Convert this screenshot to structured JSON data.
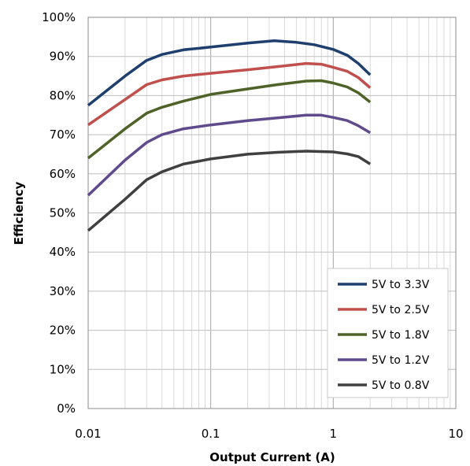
{
  "chart_data": {
    "type": "line",
    "title": "",
    "xlabel": "Output Current (A)",
    "ylabel": "Efficiency",
    "x_scale": "log",
    "xlim": [
      0.01,
      10
    ],
    "ylim": [
      0,
      100
    ],
    "grid": true,
    "legend_position": "bottom-right",
    "x_ticks": [
      {
        "value": 0.01,
        "label": "0.01"
      },
      {
        "value": 0.1,
        "label": "0.1"
      },
      {
        "value": 1,
        "label": "1"
      },
      {
        "value": 10,
        "label": "10"
      }
    ],
    "y_ticks": [
      {
        "value": 0,
        "label": "0%"
      },
      {
        "value": 10,
        "label": "10%"
      },
      {
        "value": 20,
        "label": "20%"
      },
      {
        "value": 30,
        "label": "30%"
      },
      {
        "value": 40,
        "label": "40%"
      },
      {
        "value": 50,
        "label": "50%"
      },
      {
        "value": 60,
        "label": "60%"
      },
      {
        "value": 70,
        "label": "70%"
      },
      {
        "value": 80,
        "label": "80%"
      },
      {
        "value": 90,
        "label": "90%"
      },
      {
        "value": 100,
        "label": "100%"
      }
    ],
    "series": [
      {
        "name": "5V to 3.3V",
        "color": "#1f3f6e",
        "points": [
          [
            0.01,
            77.5
          ],
          [
            0.02,
            85
          ],
          [
            0.03,
            89
          ],
          [
            0.04,
            90.5
          ],
          [
            0.06,
            91.7
          ],
          [
            0.1,
            92.4
          ],
          [
            0.2,
            93.4
          ],
          [
            0.33,
            94
          ],
          [
            0.5,
            93.6
          ],
          [
            0.7,
            93
          ],
          [
            1.0,
            91.8
          ],
          [
            1.3,
            90.3
          ],
          [
            1.6,
            88.2
          ],
          [
            2.0,
            85.3
          ]
        ]
      },
      {
        "name": "5V to 2.5V",
        "color": "#c0504d",
        "points": [
          [
            0.01,
            72.5
          ],
          [
            0.02,
            79
          ],
          [
            0.03,
            82.8
          ],
          [
            0.04,
            84
          ],
          [
            0.06,
            85
          ],
          [
            0.1,
            85.7
          ],
          [
            0.2,
            86.6
          ],
          [
            0.35,
            87.4
          ],
          [
            0.6,
            88.2
          ],
          [
            0.8,
            88
          ],
          [
            1.0,
            87.2
          ],
          [
            1.3,
            86.2
          ],
          [
            1.6,
            84.6
          ],
          [
            2.0,
            82
          ]
        ]
      },
      {
        "name": "5V to 1.8V",
        "color": "#4f6228",
        "points": [
          [
            0.01,
            64
          ],
          [
            0.02,
            71.5
          ],
          [
            0.03,
            75.5
          ],
          [
            0.04,
            77
          ],
          [
            0.06,
            78.6
          ],
          [
            0.1,
            80.3
          ],
          [
            0.2,
            81.7
          ],
          [
            0.35,
            82.8
          ],
          [
            0.6,
            83.7
          ],
          [
            0.8,
            83.8
          ],
          [
            1.0,
            83.2
          ],
          [
            1.3,
            82.2
          ],
          [
            1.6,
            80.7
          ],
          [
            2.0,
            78.3
          ]
        ]
      },
      {
        "name": "5V to 1.2V",
        "color": "#5f4b8b",
        "points": [
          [
            0.01,
            54.5
          ],
          [
            0.02,
            63.5
          ],
          [
            0.03,
            68
          ],
          [
            0.04,
            70
          ],
          [
            0.06,
            71.5
          ],
          [
            0.1,
            72.5
          ],
          [
            0.2,
            73.6
          ],
          [
            0.35,
            74.3
          ],
          [
            0.6,
            75
          ],
          [
            0.8,
            75
          ],
          [
            1.0,
            74.4
          ],
          [
            1.3,
            73.6
          ],
          [
            1.6,
            72.3
          ],
          [
            2.0,
            70.5
          ]
        ]
      },
      {
        "name": "5V to 0.8V",
        "color": "#404040",
        "points": [
          [
            0.01,
            45.5
          ],
          [
            0.02,
            53.5
          ],
          [
            0.03,
            58.5
          ],
          [
            0.04,
            60.5
          ],
          [
            0.06,
            62.5
          ],
          [
            0.1,
            63.8
          ],
          [
            0.2,
            65
          ],
          [
            0.35,
            65.5
          ],
          [
            0.6,
            65.8
          ],
          [
            1.0,
            65.6
          ],
          [
            1.3,
            65.1
          ],
          [
            1.6,
            64.4
          ],
          [
            2.0,
            62.5
          ]
        ]
      }
    ]
  }
}
